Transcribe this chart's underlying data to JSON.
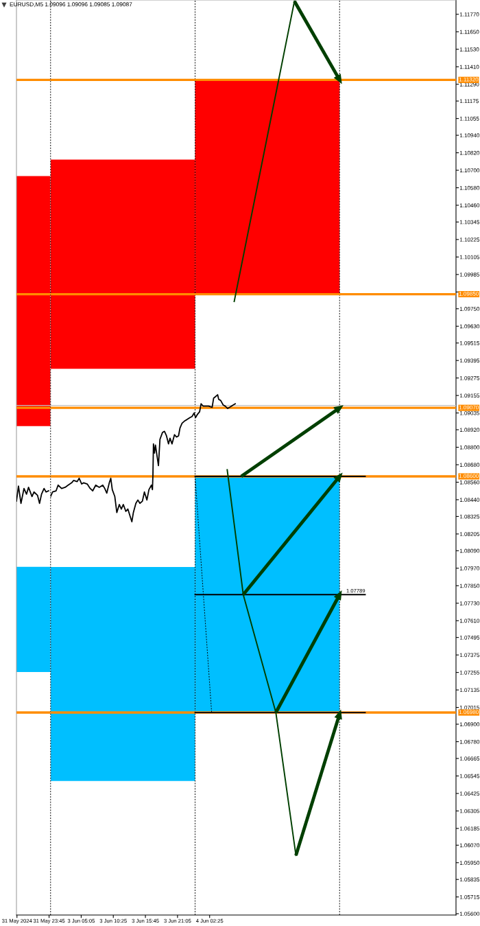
{
  "chart_data": [
    {
      "type": "line",
      "title": "EURUSD,M5 1.09096 1.09096 1.09085 1.09087",
      "tick_labels": "x",
      "xlim": [
        "2024-05-31T18:20",
        "2024-06-01T00:00"
      ],
      "ylim": [
        1.05591,
        1.11868
      ],
      "xticks": [
        {
          "value": "2024-05-31T18:25",
          "label": "31 May 2024"
        },
        {
          "value": "2024-05-31T23:45",
          "label": "31 May 23:45"
        }
      ],
      "series": [
        {
          "color": "#000000",
          "x": [
            "2024-05-31T18:20",
            "2024-05-31T18:40",
            "2024-05-31T19:05",
            "2024-05-31T19:35",
            "2024-05-31T20:00",
            "2024-05-31T20:20",
            "2024-05-31T20:55",
            "2024-05-31T21:15",
            "2024-05-31T21:50",
            "2024-05-31T22:10",
            "2024-05-31T22:30",
            "2024-05-31T22:55",
            "2024-05-31T23:15",
            "2024-05-31T23:40"
          ],
          "values": [
            1.0843,
            1.08533,
            1.08415,
            1.08517,
            1.08478,
            1.08525,
            1.08462,
            1.08493,
            1.0847,
            1.08415,
            1.08478,
            1.08517,
            1.08493,
            1.08501
          ]
        }
      ],
      "bands": [
        {
          "axis": "y",
          "from": 1.08945,
          "to": 1.1066,
          "color": "#ff0000"
        },
        {
          "axis": "y",
          "from": 1.07258,
          "to": 1.0798,
          "color": "#00bfff"
        }
      ],
      "ref_lines": [
        {
          "axis": "y",
          "value": 1.09087,
          "color": "#c0c0c0"
        },
        {
          "axis": "y",
          "value": 1.1132,
          "color": "#ff8c00"
        },
        {
          "axis": "y",
          "value": 1.0985,
          "color": "#ff8c00"
        },
        {
          "axis": "y",
          "value": 1.0907,
          "color": "#ff8c00"
        },
        {
          "axis": "y",
          "value": 1.086,
          "color": "#ff8c00"
        },
        {
          "axis": "y",
          "value": 1.0698,
          "color": "#ff8c00"
        }
      ]
    },
    {
      "type": "line",
      "xlim": [
        "2024-06-03T00:00",
        "2024-06-05T19:20"
      ],
      "ylim": [
        1.05591,
        1.11868
      ],
      "xticks": [
        {
          "value": "2024-06-03T05:05",
          "label": "3 Jun 05:05"
        },
        {
          "value": "2024-06-03T10:25",
          "label": "3 Jun 10:25"
        },
        {
          "value": "2024-06-03T15:45",
          "label": "3 Jun 15:45"
        },
        {
          "value": "2024-06-03T21:05",
          "label": "3 Jun 21:05"
        },
        {
          "value": "2024-06-04T02:25",
          "label": "4 Jun 02:25"
        }
      ],
      "yticks": [
        {
          "value": 1.1177,
          "label": "1.11770"
        },
        {
          "value": 1.1165,
          "label": "1.11650"
        },
        {
          "value": 1.1153,
          "label": "1.11530"
        },
        {
          "value": 1.1141,
          "label": "1.11410"
        },
        {
          "value": 1.1129,
          "label": "1.11290"
        },
        {
          "value": 1.11175,
          "label": "1.11175"
        },
        {
          "value": 1.11055,
          "label": "1.11055"
        },
        {
          "value": 1.1094,
          "label": "1.10940"
        },
        {
          "value": 1.1082,
          "label": "1.10820"
        },
        {
          "value": 1.107,
          "label": "1.10700"
        },
        {
          "value": 1.1058,
          "label": "1.10580"
        },
        {
          "value": 1.1046,
          "label": "1.10460"
        },
        {
          "value": 1.10345,
          "label": "1.10345"
        },
        {
          "value": 1.10225,
          "label": "1.10225"
        },
        {
          "value": 1.10105,
          "label": "1.10105"
        },
        {
          "value": 1.09985,
          "label": "1.09985"
        },
        {
          "value": 1.09865,
          "label": null
        },
        {
          "value": 1.0975,
          "label": "1.09750"
        },
        {
          "value": 1.0963,
          "label": "1.09630"
        },
        {
          "value": 1.09515,
          "label": "1.09515"
        },
        {
          "value": 1.09395,
          "label": "1.09395"
        },
        {
          "value": 1.09275,
          "label": "1.09275"
        },
        {
          "value": 1.09155,
          "label": "1.09155"
        },
        {
          "value": 1.09035,
          "label": "1.09035"
        },
        {
          "value": 1.0892,
          "label": "1.08920"
        },
        {
          "value": 1.088,
          "label": "1.08800"
        },
        {
          "value": 1.0868,
          "label": "1.08680"
        },
        {
          "value": 1.0856,
          "label": "1.08560"
        },
        {
          "value": 1.0844,
          "label": "1.08440"
        },
        {
          "value": 1.08325,
          "label": "1.08325"
        },
        {
          "value": 1.08205,
          "label": "1.08205"
        },
        {
          "value": 1.0809,
          "label": "1.08090"
        },
        {
          "value": 1.0797,
          "label": "1.07970"
        },
        {
          "value": 1.0785,
          "label": "1.07850"
        },
        {
          "value": 1.0773,
          "label": "1.07730"
        },
        {
          "value": 1.0761,
          "label": "1.07610"
        },
        {
          "value": 1.07495,
          "label": "1.07495"
        },
        {
          "value": 1.07375,
          "label": "1.07375"
        },
        {
          "value": 1.07255,
          "label": "1.07255"
        },
        {
          "value": 1.07135,
          "label": "1.07135"
        },
        {
          "value": 1.07015,
          "label": "1.07015"
        },
        {
          "value": 1.069,
          "label": "1.06900"
        },
        {
          "value": 1.0678,
          "label": "1.06780"
        },
        {
          "value": 1.06665,
          "label": "1.06665"
        },
        {
          "value": 1.06545,
          "label": "1.06545"
        },
        {
          "value": 1.06425,
          "label": "1.06425"
        },
        {
          "value": 1.06305,
          "label": "1.06305"
        },
        {
          "value": 1.06185,
          "label": "1.06185"
        },
        {
          "value": 1.0607,
          "label": "1.06070"
        },
        {
          "value": 1.0595,
          "label": "1.05950"
        },
        {
          "value": 1.05835,
          "label": "1.05835"
        },
        {
          "value": 1.05715,
          "label": "1.05715"
        },
        {
          "value": 1.056,
          "label": "1.05600"
        }
      ],
      "series": [
        {
          "type": "bar",
          "color": "#ff0000",
          "x": [
            "2024-06-03",
            "2024-06-04"
          ],
          "base": [
            1.09338,
            1.0985
          ],
          "values": [
            0.01435,
            0.0147
          ]
        },
        {
          "type": "bar",
          "color": "#00bfff",
          "x": [
            "2024-06-03",
            "2024-06-04"
          ],
          "base": [
            1.06511,
            1.0698
          ],
          "values": [
            0.01468,
            0.0162
          ]
        },
        {
          "color": "#000000",
          "x": [
            "2024-06-03T00:00",
            "2024-06-03T00:20",
            "2024-06-03T00:55",
            "2024-06-03T01:15",
            "2024-06-03T01:50",
            "2024-06-03T02:25",
            "2024-06-03T02:55",
            "2024-06-03T03:30",
            "2024-06-03T03:50",
            "2024-06-03T04:25",
            "2024-06-03T04:45",
            "2024-06-03T05:10",
            "2024-06-03T05:30",
            "2024-06-03T06:05",
            "2024-06-03T06:35",
            "2024-06-03T07:00",
            "2024-06-03T07:30",
            "2024-06-03T08:05",
            "2024-06-03T08:40",
            "2024-06-03T09:00",
            "2024-06-03T09:20",
            "2024-06-03T09:45",
            "2024-06-03T10:00",
            "2024-06-03T10:15",
            "2024-06-03T10:40",
            "2024-06-03T11:00",
            "2024-06-03T11:25",
            "2024-06-03T11:45",
            "2024-06-03T12:05",
            "2024-06-03T12:30",
            "2024-06-03T12:50",
            "2024-06-03T13:15",
            "2024-06-03T13:30",
            "2024-06-03T13:45",
            "2024-06-03T14:10",
            "2024-06-03T14:30",
            "2024-06-03T14:50",
            "2024-06-03T15:15",
            "2024-06-03T15:35",
            "2024-06-03T16:00",
            "2024-06-03T16:20",
            "2024-06-03T16:45",
            "2024-06-03T16:55",
            "2024-06-03T17:00",
            "2024-06-03T17:05",
            "2024-06-03T17:15",
            "2024-06-03T17:25",
            "2024-06-03T17:35",
            "2024-06-03T17:55",
            "2024-06-03T18:10",
            "2024-06-03T18:35",
            "2024-06-03T18:55",
            "2024-06-03T19:15",
            "2024-06-03T19:35",
            "2024-06-03T19:50",
            "2024-06-03T20:10",
            "2024-06-03T20:35",
            "2024-06-03T20:55",
            "2024-06-03T21:15",
            "2024-06-03T21:30",
            "2024-06-03T21:50",
            "2024-06-03T22:15",
            "2024-06-03T22:35",
            "2024-06-03T23:10",
            "2024-06-03T23:30",
            "2024-06-03T23:50",
            "2024-06-04T00:05",
            "2024-06-04T00:25",
            "2024-06-04T00:45",
            "2024-06-04T01:00",
            "2024-06-04T01:20",
            "2024-06-04T01:40",
            "2024-06-04T02:15",
            "2024-06-04T02:50",
            "2024-06-04T03:05",
            "2024-06-04T03:20",
            "2024-06-04T03:45",
            "2024-06-04T03:55",
            "2024-06-04T04:15",
            "2024-06-04T04:40",
            "2024-06-04T05:00",
            "2024-06-04T05:25",
            "2024-06-04T05:45",
            "2024-06-04T06:20",
            "2024-06-04T06:40"
          ],
          "values": [
            1.08462,
            1.08493,
            1.08501,
            1.0854,
            1.08517,
            1.08525,
            1.0854,
            1.08556,
            1.08572,
            1.08564,
            1.08587,
            1.08548,
            1.08556,
            1.08548,
            1.08517,
            1.08501,
            1.0854,
            1.08525,
            1.0854,
            1.08517,
            1.08485,
            1.08556,
            1.08587,
            1.08509,
            1.08462,
            1.08352,
            1.08407,
            1.08376,
            1.08407,
            1.0836,
            1.08376,
            1.08321,
            1.08289,
            1.08352,
            1.08415,
            1.08438,
            1.08415,
            1.0843,
            1.08493,
            1.08438,
            1.08509,
            1.0854,
            1.08509,
            1.08611,
            1.08823,
            1.0876,
            1.08815,
            1.08768,
            1.08674,
            1.08854,
            1.08901,
            1.08909,
            1.08878,
            1.08823,
            1.08862,
            1.08823,
            1.08886,
            1.0887,
            1.08878,
            1.08933,
            1.08964,
            1.0898,
            1.08988,
            1.09004,
            1.09011,
            1.09035,
            1.09004,
            1.09027,
            1.09043,
            1.09098,
            1.09082,
            1.09082,
            1.09082,
            1.09074,
            1.09137,
            1.09145,
            1.0916,
            1.09129,
            1.09121,
            1.0909,
            1.09082,
            1.09066,
            1.09074,
            1.0909,
            1.09098
          ]
        },
        {
          "color": "#000000",
          "line_style": "dotted",
          "x": [
            "2024-06-04T00:00",
            "2024-06-04T02:45"
          ],
          "values": [
            1.086,
            1.0698
          ]
        },
        {
          "color": "#000000",
          "x": [
            "2024-06-04T00:00",
            "2024-06-05T04:15"
          ],
          "values": [
            1.07789,
            1.07789
          ],
          "value_labels": [
            null,
            "1.07789"
          ]
        },
        {
          "color": "#000000",
          "x": [
            "2024-06-04T00:00",
            "2024-06-05T04:15"
          ],
          "values": [
            1.086,
            1.086
          ]
        },
        {
          "color": "#000000",
          "x": [
            "2024-06-04T00:00",
            "2024-06-05T04:15"
          ],
          "values": [
            1.0698,
            1.0698
          ]
        },
        {
          "color": "#003f00",
          "x": [
            "2024-06-04T06:30",
            "2024-06-04T16:30"
          ],
          "values": [
            1.098,
            1.1186
          ]
        },
        {
          "color": "#003f00",
          "x": [
            "2024-06-04T05:20",
            "2024-06-04T08:00",
            "2024-06-04T13:25",
            "2024-06-04T16:45"
          ],
          "values": [
            1.08646,
            1.07789,
            1.0698,
            1.06
          ]
        },
        {
          "color": "#003f00",
          "marker": "triangle",
          "x": [
            "2024-06-04T16:30",
            "2024-06-05T00:00"
          ],
          "values": [
            1.1186,
            1.1132
          ]
        },
        {
          "color": "#003f00",
          "marker": "triangle",
          "x": [
            "2024-06-04T07:40",
            "2024-06-05T00:00"
          ],
          "values": [
            1.086,
            1.0907
          ]
        },
        {
          "color": "#003f00",
          "marker": "triangle",
          "x": [
            "2024-06-04T08:00",
            "2024-06-05T00:00"
          ],
          "values": [
            1.07789,
            1.086
          ]
        },
        {
          "color": "#003f00",
          "marker": "triangle",
          "x": [
            "2024-06-04T13:25",
            "2024-06-05T00:00"
          ],
          "values": [
            1.0698,
            1.07789
          ]
        },
        {
          "color": "#003f00",
          "marker": "triangle",
          "x": [
            "2024-06-04T16:45",
            "2024-06-05T00:00"
          ],
          "values": [
            1.06,
            1.0697
          ]
        }
      ],
      "ref_lines": [
        {
          "axis": "x",
          "value": "2024-06-03",
          "color": "#000000",
          "line_style": "dotted"
        },
        {
          "axis": "x",
          "value": "2024-06-04",
          "color": "#000000",
          "line_style": "dotted"
        },
        {
          "axis": "x",
          "value": "2024-06-05",
          "color": "#000000",
          "line_style": "dotted"
        },
        {
          "axis": "y",
          "value": 1.09087,
          "color": "#c0c0c0"
        },
        {
          "axis": "y",
          "value": 1.1132,
          "label": "1.11320",
          "color": "#ff8c00"
        },
        {
          "axis": "y",
          "value": 1.0985,
          "label": "1.09850",
          "color": "#ff8c00"
        },
        {
          "axis": "y",
          "value": 1.0907,
          "label": "1.09070",
          "color": "#ff8c00"
        },
        {
          "axis": "y",
          "value": 1.086,
          "label": "1.08600",
          "color": "#ff8c00"
        },
        {
          "axis": "y",
          "value": 1.0698,
          "label": "1.06980",
          "color": "#ff8c00"
        }
      ]
    }
  ]
}
